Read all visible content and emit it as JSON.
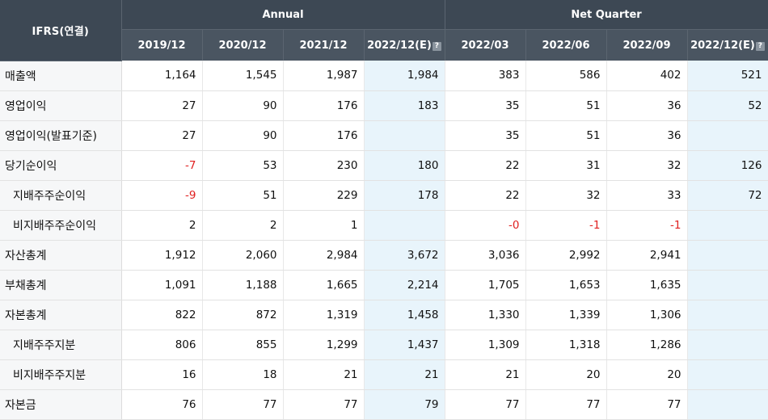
{
  "header": {
    "row_header": "IFRS(연결)",
    "group_annual": "Annual",
    "group_quarter": "Net Quarter",
    "columns": [
      "2019/12",
      "2020/12",
      "2021/12",
      "2022/12(E)",
      "2022/03",
      "2022/06",
      "2022/09",
      "2022/12(E)"
    ],
    "help_icon_glyph": "?"
  },
  "rows": [
    {
      "label": "매출액",
      "indent": false,
      "values": [
        "1,164",
        "1,545",
        "1,987",
        "1,984",
        "383",
        "586",
        "402",
        "521"
      ]
    },
    {
      "label": "영업이익",
      "indent": false,
      "values": [
        "27",
        "90",
        "176",
        "183",
        "35",
        "51",
        "36",
        "52"
      ]
    },
    {
      "label": "영업이익(발표기준)",
      "indent": false,
      "values": [
        "27",
        "90",
        "176",
        "",
        "35",
        "51",
        "36",
        ""
      ]
    },
    {
      "label": "당기순이익",
      "indent": false,
      "values": [
        "-7",
        "53",
        "230",
        "180",
        "22",
        "31",
        "32",
        "126"
      ]
    },
    {
      "label": "지배주주순이익",
      "indent": true,
      "values": [
        "-9",
        "51",
        "229",
        "178",
        "22",
        "32",
        "33",
        "72"
      ]
    },
    {
      "label": "비지배주주순이익",
      "indent": true,
      "values": [
        "2",
        "2",
        "1",
        "",
        "-0",
        "-1",
        "-1",
        ""
      ]
    },
    {
      "label": "자산총계",
      "indent": false,
      "values": [
        "1,912",
        "2,060",
        "2,984",
        "3,672",
        "3,036",
        "2,992",
        "2,941",
        ""
      ]
    },
    {
      "label": "부채총계",
      "indent": false,
      "values": [
        "1,091",
        "1,188",
        "1,665",
        "2,214",
        "1,705",
        "1,653",
        "1,635",
        ""
      ]
    },
    {
      "label": "자본총계",
      "indent": false,
      "values": [
        "822",
        "872",
        "1,319",
        "1,458",
        "1,330",
        "1,339",
        "1,306",
        ""
      ]
    },
    {
      "label": "지배주주지분",
      "indent": true,
      "values": [
        "806",
        "855",
        "1,299",
        "1,437",
        "1,309",
        "1,318",
        "1,286",
        ""
      ]
    },
    {
      "label": "비지배주주지분",
      "indent": true,
      "values": [
        "16",
        "18",
        "21",
        "21",
        "21",
        "20",
        "20",
        ""
      ]
    },
    {
      "label": "자본금",
      "indent": false,
      "values": [
        "76",
        "77",
        "77",
        "79",
        "77",
        "77",
        "77",
        ""
      ]
    }
  ],
  "colors": {
    "negative": "#e02020",
    "estimate_bg": "#e8f4fb",
    "header_bg": "#3d4854"
  }
}
